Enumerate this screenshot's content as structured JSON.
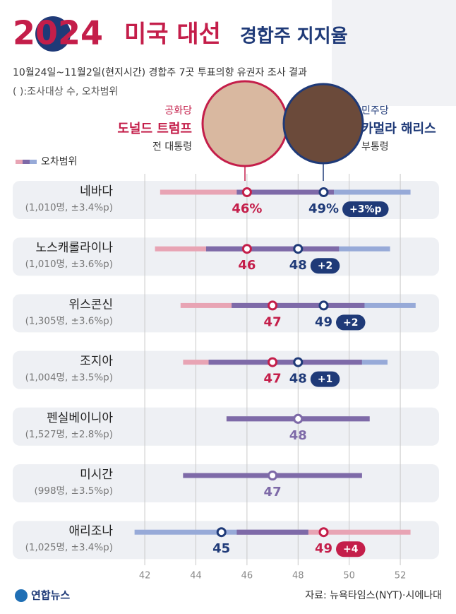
{
  "chart_data": {
    "type": "dot",
    "title_year": "2024",
    "title": "미국 대선",
    "title_sub": "경합주 지지율",
    "subtitle": "10월24일~11월2일(현지시간) 경합주 7곳 투표의향 유권자 조사 결과",
    "note": "( ):조사대상 수, 오차범위",
    "legend_label": "오차범위",
    "candidates": [
      {
        "party": "공화당",
        "name": "도널드 트럼프",
        "role": "전 대통령"
      },
      {
        "party": "민주당",
        "name": "카멀라 해리스",
        "role": "부통령"
      }
    ],
    "categories": [
      "네바다",
      "노스캐롤라이나",
      "위스콘신",
      "조지아",
      "펜실베이니아",
      "미시간",
      "애리조나"
    ],
    "category_notes": [
      "(1,010명, ±3.4%p)",
      "(1,010명, ±3.6%p)",
      "(1,305명, ±3.6%p)",
      "(1,004명, ±3.5%p)",
      "(1,527명, ±2.8%p)",
      "(998명, ±3.5%p)",
      "(1,025명, ±3.4%p)"
    ],
    "series": [
      {
        "name": "도널드 트럼프",
        "color": "#c41e4a",
        "error_color": "#e8a4b4",
        "values": [
          46,
          46,
          47,
          47,
          48,
          47,
          49
        ],
        "errors": [
          3.4,
          3.6,
          3.6,
          3.5,
          2.8,
          3.5,
          3.4
        ],
        "value_labels": [
          "46%",
          "46",
          "47",
          "47",
          "48",
          "47",
          "49"
        ]
      },
      {
        "name": "카멀라 해리스",
        "color": "#1f3a78",
        "error_color": "#97aad8",
        "values": [
          49,
          48,
          49,
          48,
          48,
          47,
          45
        ],
        "errors": [
          3.4,
          3.6,
          3.6,
          3.5,
          2.8,
          3.5,
          3.4
        ],
        "value_labels": [
          "49%",
          "48",
          "49",
          "48",
          null,
          null,
          "45"
        ]
      }
    ],
    "tie_color": "#7e6aa8",
    "lead_labels": [
      "+3%p",
      "+2",
      "+2",
      "+1",
      null,
      null,
      "+4"
    ],
    "xlim": [
      41.5,
      53.6
    ],
    "xticks": [
      42,
      44,
      46,
      48,
      50,
      52
    ],
    "grid": true,
    "source": "자료: 뉴욕타임스(NYT)·시에나대",
    "logo": "연합뉴스"
  }
}
